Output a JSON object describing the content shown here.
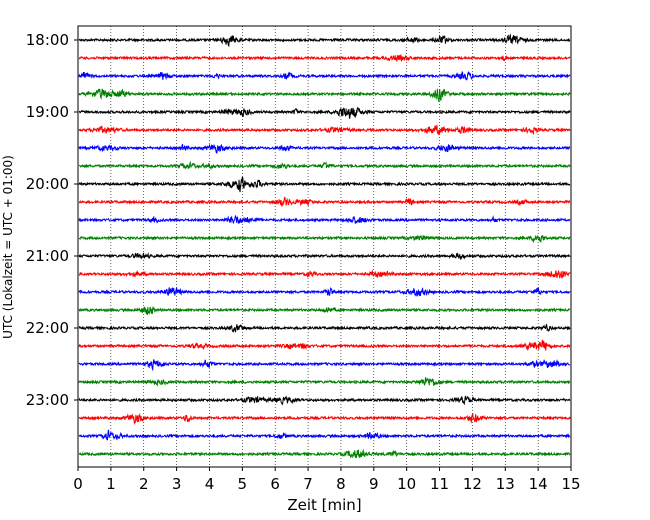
{
  "chart_data": {
    "type": "line",
    "chart_kind": "helicorder",
    "xlabel": "Zeit  [min]",
    "ylabel": "UTC (Lokalzeit = UTC + 01:00)",
    "xlim": [
      0,
      15
    ],
    "x_ticks": [
      "0",
      "1",
      "2",
      "3",
      "4",
      "5",
      "6",
      "7",
      "8",
      "9",
      "10",
      "11",
      "12",
      "13",
      "14",
      "15"
    ],
    "x_grid": true,
    "hour_labels": [
      "18:00",
      "19:00",
      "20:00",
      "21:00",
      "22:00",
      "23:00"
    ],
    "row_start_times": [
      "18:00",
      "18:15",
      "18:30",
      "18:45",
      "19:00",
      "19:15",
      "19:30",
      "19:45",
      "20:00",
      "20:15",
      "20:30",
      "20:45",
      "21:00",
      "21:15",
      "21:30",
      "21:45",
      "22:00",
      "22:15",
      "22:30",
      "22:45",
      "23:00",
      "23:15",
      "23:30",
      "23:45"
    ],
    "row_colors": [
      "#000000",
      "#ff0000",
      "#0000ff",
      "#008000"
    ],
    "series_description": "24 seismogram traces, one per 15-minute window from 18:00 to 23:59 UTC, colors cycling black, red, blue, green"
  }
}
